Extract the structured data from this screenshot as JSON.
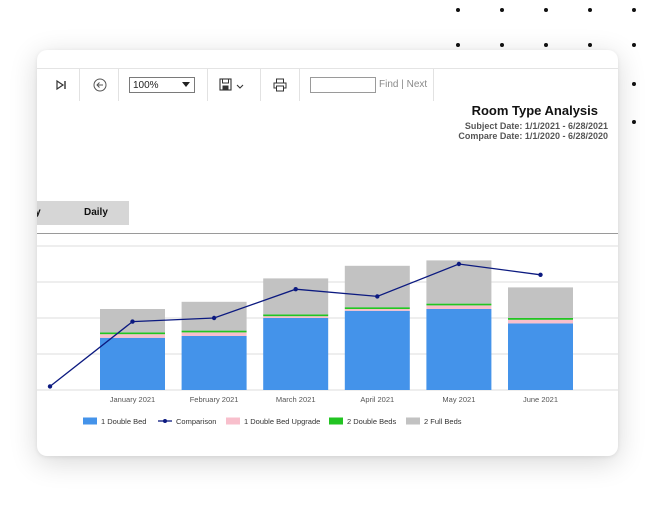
{
  "toolbar": {
    "last_page_icon": "last-page-icon",
    "back_icon": "back-arrow-icon",
    "zoom": "100%",
    "save_icon": "save-icon",
    "print_icon": "printer-icon",
    "find_value": "",
    "find_label": "Find",
    "separator": "|",
    "next_label": "Next"
  },
  "report": {
    "title": "Room Type Analysis",
    "subject_date": "Subject Date: 1/1/2021 - 6/28/2021",
    "compare_date": "Compare Date: 1/1/2020 - 6/28/2020"
  },
  "tabs": [
    {
      "label": "dy"
    },
    {
      "label": "Daily"
    }
  ],
  "colors": {
    "one_double_bed": "#4493ea",
    "comparison": "#0c1a80",
    "one_double_bed_upgrade": "#f8bfcc",
    "two_double_beds": "#22c422",
    "two_full_beds": "#c2c2c2"
  },
  "chart_data": {
    "type": "bar",
    "stacked": true,
    "categories": [
      "January 2021",
      "February 2021",
      "March 2021",
      "April 2021",
      "May 2021",
      "June 2021"
    ],
    "series": [
      {
        "name": "1 Double Bed",
        "values": [
          29,
          30,
          40,
          44,
          45,
          37
        ]
      },
      {
        "name": "1 Double Bed Upgrade",
        "values": [
          2,
          2,
          1,
          1,
          2,
          2
        ]
      },
      {
        "name": "2 Double Beds",
        "values": [
          1,
          1,
          1,
          1,
          1,
          1
        ]
      },
      {
        "name": "2 Full Beds",
        "values": [
          13,
          16,
          20,
          23,
          24,
          17
        ]
      }
    ],
    "line_series": {
      "name": "Comparison",
      "values": [
        38,
        40,
        56,
        52,
        70,
        64
      ]
    },
    "line_start_value": 2,
    "ylim": [
      0,
      80
    ],
    "grid": true,
    "legend": "bottom"
  }
}
